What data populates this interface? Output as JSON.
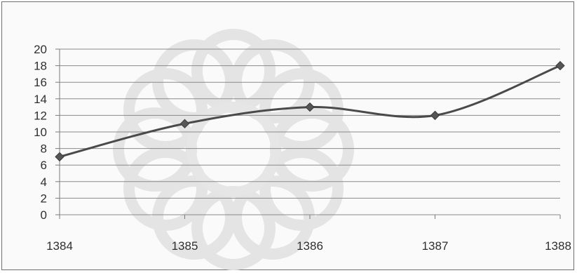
{
  "chart_data": {
    "type": "line",
    "categories": [
      "1384",
      "1385",
      "1386",
      "1387",
      "1388"
    ],
    "series": [
      {
        "values": [
          7,
          11,
          13,
          12,
          18
        ]
      }
    ],
    "title": "",
    "xlabel": "",
    "ylabel": "",
    "ylim": [
      0,
      20
    ],
    "yticks": [
      "0",
      "2",
      "4",
      "6",
      "8",
      "10",
      "12",
      "14",
      "16",
      "18",
      "20"
    ],
    "grid": true,
    "legend": "none",
    "smooth": true,
    "colors": {
      "line": "#4a4a4a",
      "marker": "#555555",
      "grid": "#8a8a8a",
      "background": "#fafafa",
      "axis": "#7a7a7a"
    }
  }
}
